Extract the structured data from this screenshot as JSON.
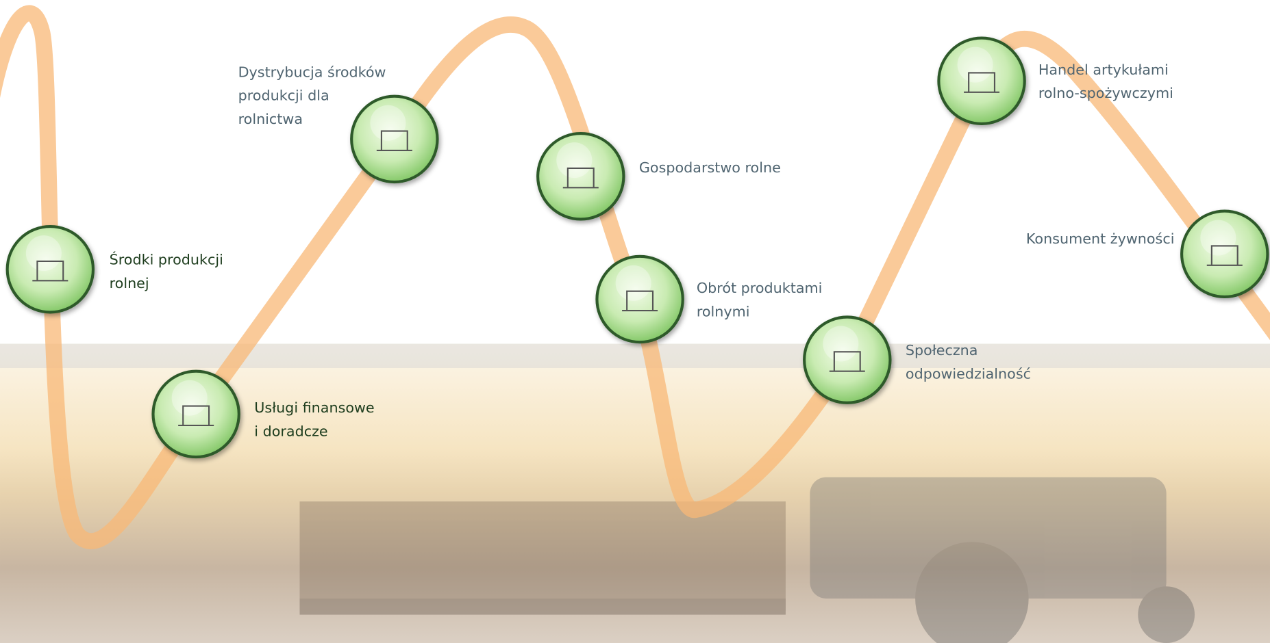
{
  "nodes": [
    {
      "label": [
        "Środki produkcji",
        "rolnej"
      ]
    },
    {
      "label": [
        "Usługi finansowe",
        "i doradcze"
      ]
    },
    {
      "label": [
        "Dystrybucja środków",
        "produkcji dla",
        "rolnictwa"
      ]
    },
    {
      "label": [
        "Gospodarstwo rolne"
      ]
    },
    {
      "label": [
        "Obrót produktami",
        "rolnymi"
      ]
    },
    {
      "label": [
        "Społeczna",
        "odpowiedzialność"
      ]
    },
    {
      "label": [
        "Handel artykułami",
        "rolno-spożywczymi"
      ]
    },
    {
      "label": [
        "Konsument żywności"
      ]
    }
  ]
}
